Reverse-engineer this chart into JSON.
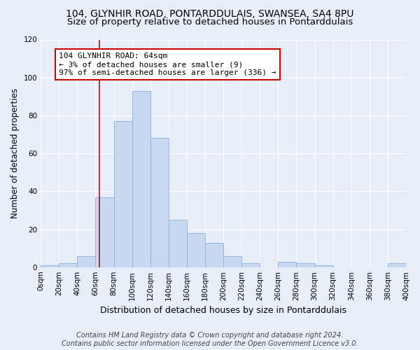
{
  "title": "104, GLYNHIR ROAD, PONTARDDULAIS, SWANSEA, SA4 8PU",
  "subtitle": "Size of property relative to detached houses in Pontarddulais",
  "xlabel": "Distribution of detached houses by size in Pontarddulais",
  "ylabel": "Number of detached properties",
  "bin_edges": [
    0,
    20,
    40,
    60,
    80,
    100,
    120,
    140,
    160,
    180,
    200,
    220,
    240,
    260,
    280,
    300,
    320,
    340,
    360,
    380,
    400
  ],
  "bar_heights": [
    1,
    2,
    6,
    37,
    77,
    93,
    68,
    25,
    18,
    13,
    6,
    2,
    0,
    3,
    2,
    1,
    0,
    0,
    0,
    2
  ],
  "bar_color": "#c8d8f0",
  "bar_edgecolor": "#8ab0d8",
  "property_size": 64,
  "vline_color": "#cc0000",
  "annotation_line1": "104 GLYNHIR ROAD: 64sqm",
  "annotation_line2": "← 3% of detached houses are smaller (9)",
  "annotation_line3": "97% of semi-detached houses are larger (336) →",
  "annotation_box_edgecolor": "#cc0000",
  "annotation_box_facecolor": "#ffffff",
  "ylim": [
    0,
    120
  ],
  "yticks": [
    0,
    20,
    40,
    60,
    80,
    100,
    120
  ],
  "footer_text": "Contains HM Land Registry data © Crown copyright and database right 2024.\nContains public sector information licensed under the Open Government Licence v3.0.",
  "background_color": "#e8eef8",
  "grid_color": "#ffffff",
  "title_fontsize": 10,
  "subtitle_fontsize": 9.5,
  "xlabel_fontsize": 9,
  "ylabel_fontsize": 8.5,
  "tick_labelsize": 7.5,
  "footer_fontsize": 7,
  "annotation_fontsize": 8
}
